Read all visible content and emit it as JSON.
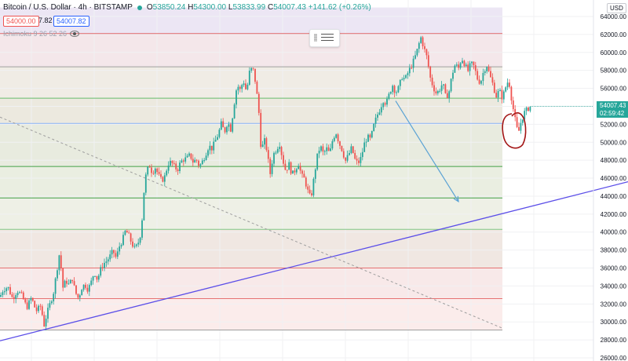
{
  "header": {
    "symbol": "Bitcoin / U.S. Dollar",
    "interval": "4h",
    "exchange": "BITSTAMP",
    "open": "53850.24",
    "high": "54300.00",
    "low": "53833.99",
    "close": "54007.43",
    "change": "+141.62 (+0.26%)"
  },
  "sell_price": "54000.00",
  "spread": "7.82",
  "buy_price": "54007.82",
  "indicator_label": "Ichimoku 9 26 52 26",
  "currency_label": "USD",
  "last_price": "54007.43",
  "countdown": "02:59:42",
  "colors": {
    "up": "#26a69a",
    "down": "#ef5350",
    "trend_line": "#5b4ee8",
    "projection_arrow": "#5aa2d4",
    "circle_annotation": "#a31515"
  },
  "chart_data": {
    "type": "candlestick",
    "y_axis": {
      "range": [
        26000,
        65000
      ],
      "ticks": [
        26000,
        28000,
        30000,
        32000,
        34000,
        36000,
        38000,
        40000,
        42000,
        44000,
        46000,
        48000,
        50000,
        52000,
        54000,
        56000,
        58000,
        60000,
        62000,
        64000
      ],
      "tick_labels": [
        "26000.00",
        "28000.00",
        "30000.00",
        "32000.00",
        "34000.00",
        "36000.00",
        "38000.00",
        "40000.00",
        "42000.00",
        "44000.00",
        "46000.00",
        "48000.00",
        "50000.00",
        "52000.00",
        "54000.00",
        "56000.00",
        "58000.00",
        "60000.00",
        "62000.00",
        "64000.00"
      ]
    },
    "fib_levels": [
      {
        "price": 62100,
        "color": "#e06666"
      },
      {
        "price": 58400,
        "color": "#9e9e9e"
      },
      {
        "price": 54900,
        "color": "#66bb6a"
      },
      {
        "price": 52100,
        "color": "#8ab4f8"
      },
      {
        "price": 47300,
        "color": "#43a047"
      },
      {
        "price": 43800,
        "color": "#43a047"
      },
      {
        "price": 40300,
        "color": "#81c784"
      },
      {
        "price": 36000,
        "color": "#e57373"
      },
      {
        "price": 32600,
        "color": "#e57373"
      },
      {
        "price": 29100,
        "color": "#9e9e9e"
      }
    ],
    "price_path": [
      [
        0,
        32800
      ],
      [
        4,
        33600
      ],
      [
        10,
        33900
      ],
      [
        16,
        32600
      ],
      [
        22,
        33500
      ],
      [
        28,
        32900
      ],
      [
        34,
        31600
      ],
      [
        40,
        32700
      ],
      [
        46,
        31200
      ],
      [
        52,
        31800
      ],
      [
        56,
        29600
      ],
      [
        60,
        31000
      ],
      [
        64,
        32100
      ],
      [
        68,
        33200
      ],
      [
        72,
        35500
      ],
      [
        76,
        37800
      ],
      [
        80,
        33800
      ],
      [
        84,
        34600
      ],
      [
        88,
        34100
      ],
      [
        92,
        34900
      ],
      [
        96,
        33300
      ],
      [
        100,
        32600
      ],
      [
        104,
        33800
      ],
      [
        108,
        34200
      ],
      [
        112,
        33600
      ],
      [
        116,
        34400
      ],
      [
        120,
        35600
      ],
      [
        124,
        34700
      ],
      [
        128,
        35800
      ],
      [
        132,
        36500
      ],
      [
        136,
        36800
      ],
      [
        140,
        37300
      ],
      [
        144,
        37900
      ],
      [
        148,
        37100
      ],
      [
        152,
        38400
      ],
      [
        156,
        39100
      ],
      [
        160,
        40200
      ],
      [
        164,
        39600
      ],
      [
        168,
        38700
      ],
      [
        172,
        38100
      ],
      [
        176,
        38800
      ],
      [
        180,
        40100
      ],
      [
        183,
        44200
      ],
      [
        186,
        46400
      ],
      [
        190,
        47500
      ],
      [
        194,
        46600
      ],
      [
        198,
        47200
      ],
      [
        202,
        46300
      ],
      [
        206,
        45700
      ],
      [
        210,
        46200
      ],
      [
        214,
        47600
      ],
      [
        218,
        47800
      ],
      [
        222,
        47300
      ],
      [
        226,
        46900
      ],
      [
        230,
        47800
      ],
      [
        234,
        48100
      ],
      [
        238,
        48200
      ],
      [
        242,
        48600
      ],
      [
        246,
        47800
      ],
      [
        250,
        48100
      ],
      [
        254,
        47300
      ],
      [
        258,
        47900
      ],
      [
        262,
        48700
      ],
      [
        266,
        49600
      ],
      [
        270,
        49300
      ],
      [
        274,
        50100
      ],
      [
        278,
        50900
      ],
      [
        282,
        52100
      ],
      [
        286,
        51100
      ],
      [
        290,
        52300
      ],
      [
        294,
        51400
      ],
      [
        298,
        54100
      ],
      [
        302,
        56400
      ],
      [
        306,
        55800
      ],
      [
        310,
        56900
      ],
      [
        314,
        55600
      ],
      [
        318,
        57900
      ],
      [
        322,
        58300
      ],
      [
        326,
        56400
      ],
      [
        330,
        53100
      ],
      [
        333,
        48600
      ],
      [
        336,
        50500
      ],
      [
        340,
        49100
      ],
      [
        344,
        46400
      ],
      [
        348,
        48600
      ],
      [
        352,
        49200
      ],
      [
        356,
        49900
      ],
      [
        360,
        48100
      ],
      [
        364,
        46800
      ],
      [
        368,
        47600
      ],
      [
        372,
        46400
      ],
      [
        376,
        46900
      ],
      [
        380,
        47700
      ],
      [
        384,
        46300
      ],
      [
        388,
        45900
      ],
      [
        392,
        44600
      ],
      [
        396,
        43700
      ],
      [
        400,
        46100
      ],
      [
        404,
        48400
      ],
      [
        408,
        49600
      ],
      [
        412,
        48700
      ],
      [
        416,
        49300
      ],
      [
        420,
        48700
      ],
      [
        424,
        50400
      ],
      [
        428,
        51100
      ],
      [
        432,
        49900
      ],
      [
        436,
        49100
      ],
      [
        440,
        47900
      ],
      [
        444,
        48600
      ],
      [
        448,
        49400
      ],
      [
        452,
        48100
      ],
      [
        456,
        47600
      ],
      [
        460,
        48300
      ],
      [
        464,
        49800
      ],
      [
        468,
        50600
      ],
      [
        472,
        50300
      ],
      [
        476,
        51800
      ],
      [
        480,
        52900
      ],
      [
        484,
        53700
      ],
      [
        488,
        54700
      ],
      [
        492,
        54300
      ],
      [
        496,
        55400
      ],
      [
        500,
        56400
      ],
      [
        504,
        55500
      ],
      [
        508,
        56100
      ],
      [
        512,
        57300
      ],
      [
        516,
        57000
      ],
      [
        520,
        57800
      ],
      [
        524,
        58500
      ],
      [
        528,
        59300
      ],
      [
        532,
        60400
      ],
      [
        536,
        61700
      ],
      [
        540,
        60500
      ],
      [
        544,
        59400
      ],
      [
        548,
        57200
      ],
      [
        552,
        56100
      ],
      [
        556,
        55400
      ],
      [
        560,
        55900
      ],
      [
        564,
        56600
      ],
      [
        568,
        54900
      ],
      [
        572,
        55600
      ],
      [
        576,
        57600
      ],
      [
        580,
        58700
      ],
      [
        584,
        58200
      ],
      [
        588,
        59400
      ],
      [
        592,
        58700
      ],
      [
        596,
        57900
      ],
      [
        600,
        58800
      ],
      [
        604,
        58400
      ],
      [
        608,
        57100
      ],
      [
        612,
        56600
      ],
      [
        616,
        57900
      ],
      [
        620,
        58600
      ],
      [
        624,
        57400
      ],
      [
        628,
        56400
      ],
      [
        632,
        55100
      ],
      [
        636,
        55800
      ],
      [
        640,
        54900
      ],
      [
        644,
        56100
      ],
      [
        648,
        57000
      ],
      [
        652,
        54600
      ],
      [
        656,
        52600
      ],
      [
        660,
        50900
      ],
      [
        664,
        52400
      ],
      [
        668,
        53300
      ],
      [
        672,
        53700
      ],
      [
        676,
        54007
      ]
    ],
    "trend_line": {
      "from": [
        0,
        27900
      ],
      "to": [
        800,
        45600
      ]
    },
    "dashed_line": {
      "from": [
        0,
        52800
      ],
      "to": [
        640,
        29300
      ]
    },
    "projection_arrow": {
      "from": [
        504,
        54600
      ],
      "to": [
        584,
        43400
      ]
    },
    "shaded_band": [
      29100,
      65000
    ]
  }
}
